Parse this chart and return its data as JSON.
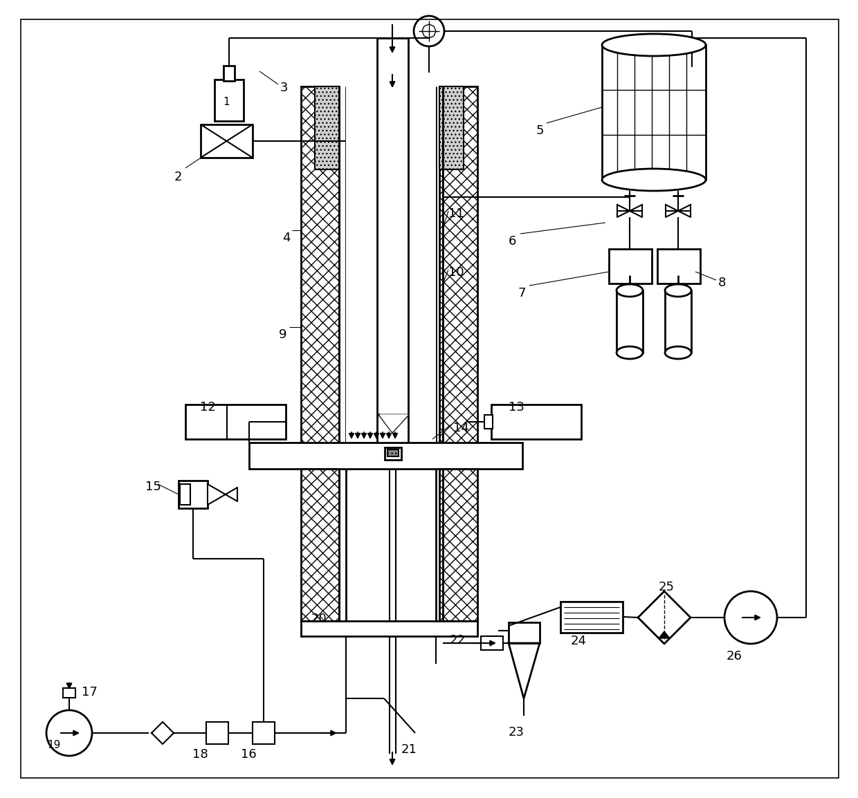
{
  "bg_color": "#ffffff",
  "line_color": "#000000",
  "fig_width": 12.4,
  "fig_height": 11.54,
  "dpi": 100
}
